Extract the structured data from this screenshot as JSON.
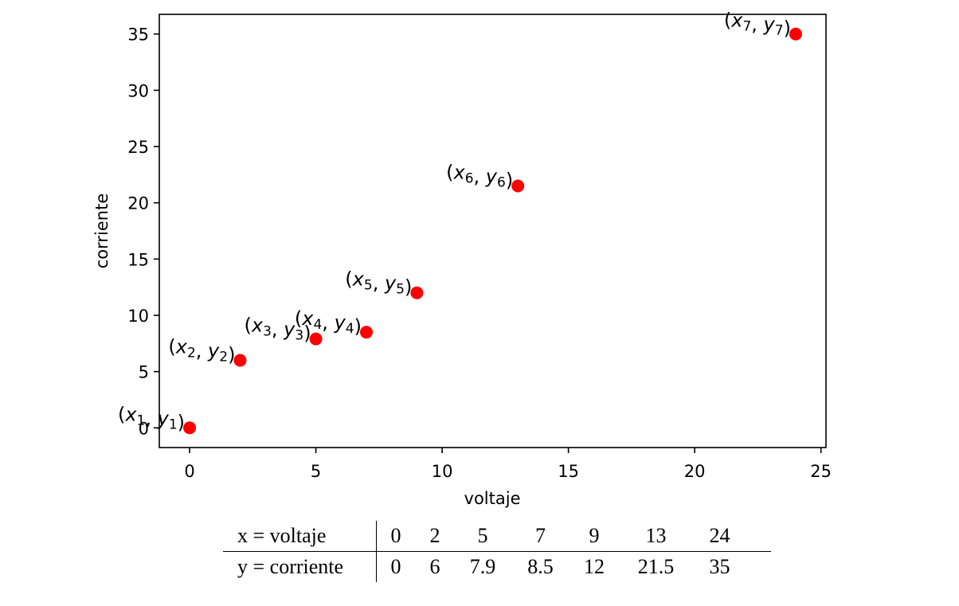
{
  "chart_data": {
    "type": "scatter",
    "title": "",
    "xlabel": "voltaje",
    "ylabel": "corriente",
    "xlim": [
      -1.2,
      25.2
    ],
    "ylim": [
      -1.75,
      36.75
    ],
    "xticks": [
      0,
      5,
      10,
      15,
      20,
      25
    ],
    "yticks": [
      0,
      5,
      10,
      15,
      20,
      25,
      30,
      35
    ],
    "grid": false,
    "marker_color": "#ff0000",
    "points": [
      {
        "x": 0,
        "y": 0,
        "label_var_x": "x",
        "label_sub_x": "1",
        "label_var_y": "y",
        "label_sub_y": "1"
      },
      {
        "x": 2,
        "y": 6,
        "label_var_x": "x",
        "label_sub_x": "2",
        "label_var_y": "y",
        "label_sub_y": "2"
      },
      {
        "x": 5,
        "y": 7.9,
        "label_var_x": "x",
        "label_sub_x": "3",
        "label_var_y": "y",
        "label_sub_y": "3"
      },
      {
        "x": 7,
        "y": 8.5,
        "label_var_x": "x",
        "label_sub_x": "4",
        "label_var_y": "y",
        "label_sub_y": "4"
      },
      {
        "x": 9,
        "y": 12,
        "label_var_x": "x",
        "label_sub_x": "5",
        "label_var_y": "y",
        "label_sub_y": "5"
      },
      {
        "x": 13,
        "y": 21.5,
        "label_var_x": "x",
        "label_sub_x": "6",
        "label_var_y": "y",
        "label_sub_y": "6"
      },
      {
        "x": 24,
        "y": 35,
        "label_var_x": "x",
        "label_sub_x": "7",
        "label_var_y": "y",
        "label_sub_y": "7"
      }
    ]
  },
  "table": {
    "row_x_header": "x = voltaje",
    "row_y_header": "y = corriente",
    "x_values": [
      "0",
      "2",
      "5",
      "7",
      "9",
      "13",
      "24"
    ],
    "y_values": [
      "0",
      "6",
      "7.9",
      "8.5",
      "12",
      "21.5",
      "35"
    ]
  }
}
